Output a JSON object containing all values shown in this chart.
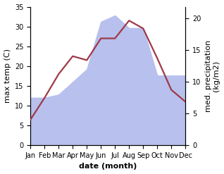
{
  "months": [
    "Jan",
    "Feb",
    "Mar",
    "Apr",
    "May",
    "Jun",
    "Jul",
    "Aug",
    "Sep",
    "Oct",
    "Nov",
    "Dec"
  ],
  "temp": [
    6.5,
    12.0,
    18.0,
    22.5,
    21.5,
    27.0,
    27.0,
    31.5,
    29.5,
    22.0,
    14.0,
    11.0
  ],
  "precip": [
    7.5,
    7.5,
    8.0,
    10.0,
    12.0,
    19.5,
    20.5,
    18.5,
    18.5,
    11.0,
    11.0,
    11.0
  ],
  "temp_color": "#9e3a47",
  "precip_color": "#b8c0ee",
  "ylim_temp": [
    0,
    35
  ],
  "ylim_precip": [
    0,
    21.875
  ],
  "yticks_temp": [
    0,
    5,
    10,
    15,
    20,
    25,
    30,
    35
  ],
  "yticks_precip": [
    0,
    5,
    10,
    15,
    20
  ],
  "ylabel_left": "max temp (C)",
  "ylabel_right": "med. precipitation\n(kg/m2)",
  "xlabel": "date (month)",
  "bg_color": "#ffffff",
  "temp_linewidth": 1.6,
  "label_fontsize": 8,
  "tick_fontsize": 7
}
